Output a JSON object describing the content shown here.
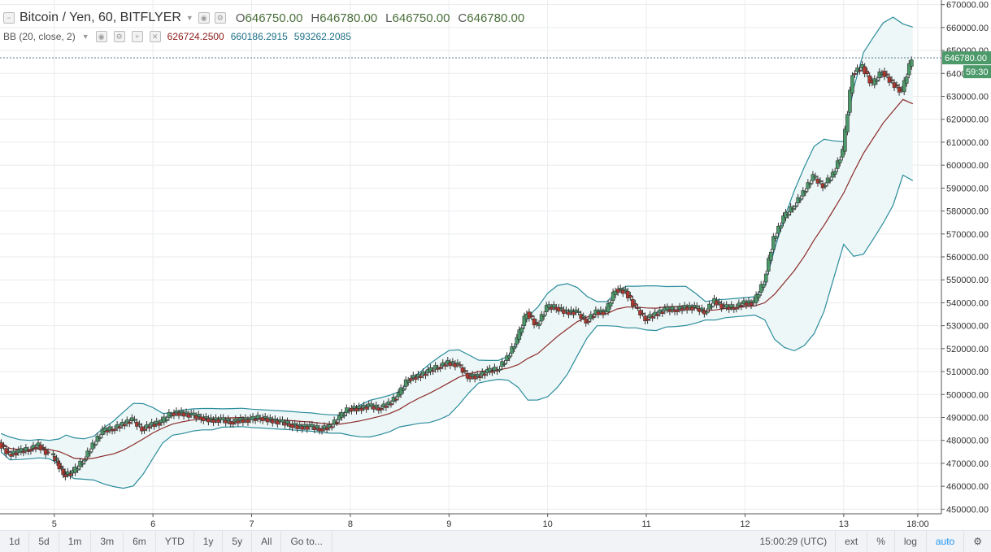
{
  "header": {
    "symbol": "Bitcoin / Yen, 60, BITFLYER",
    "open_label": "O",
    "open": "646750.00",
    "high_label": "H",
    "high": "646780.00",
    "low_label": "L",
    "low": "646750.00",
    "close_label": "C",
    "close": "646780.00"
  },
  "indicator": {
    "name": "BB (20, close, 2)",
    "basis": "626724.2500",
    "upper": "660186.2915",
    "lower": "593262.2085"
  },
  "price_badge": {
    "price": "646780.00",
    "countdown": "59:30"
  },
  "toolbar": {
    "ranges": [
      "1d",
      "5d",
      "1m",
      "3m",
      "6m",
      "YTD",
      "1y",
      "5y",
      "All"
    ],
    "goto": "Go to...",
    "time": "15:00:29 (UTC)",
    "ext": "ext",
    "percent": "%",
    "log": "log",
    "auto": "auto"
  },
  "colors": {
    "up": "#4c9a6a",
    "down": "#b5372d",
    "basis": "#8b2a2a",
    "band": "#2a8c9c",
    "band_fill": "#eef7f7",
    "grid": "#e9ebee",
    "axis_text": "#333333",
    "price_badge": "#4c9a6a"
  },
  "chart_data": {
    "type": "candlestick",
    "title": "Bitcoin / Yen, 60, BITFLYER",
    "ylim": [
      448000,
      672000
    ],
    "y_ticks": [
      450000,
      460000,
      470000,
      480000,
      490000,
      500000,
      510000,
      520000,
      530000,
      540000,
      550000,
      560000,
      570000,
      580000,
      590000,
      600000,
      610000,
      620000,
      630000,
      640000,
      650000,
      660000,
      670000
    ],
    "y_tick_labels": [
      "450000.00",
      "460000.00",
      "470000.00",
      "480000.00",
      "490000.00",
      "500000.00",
      "510000.00",
      "520000.00",
      "530000.00",
      "540000.00",
      "550000.00",
      "560000.00",
      "570000.00",
      "580000.00",
      "590000.00",
      "600000.00",
      "610000.00",
      "620000.00",
      "630000.00",
      "640000.00",
      "650000.00",
      "660000.00",
      "670000.00"
    ],
    "x_ticks": [
      {
        "label": "5",
        "day": 5
      },
      {
        "label": "6",
        "day": 6
      },
      {
        "label": "7",
        "day": 7
      },
      {
        "label": "8",
        "day": 8
      },
      {
        "label": "9",
        "day": 9
      },
      {
        "label": "10",
        "day": 10
      },
      {
        "label": "11",
        "day": 11
      },
      {
        "label": "12",
        "day": 12
      },
      {
        "label": "13",
        "day": 13
      },
      {
        "label": "18:00",
        "day": 13.75
      }
    ],
    "x_range_days": [
      4.45,
      13.99
    ],
    "series_close": [
      [
        4.46,
        479000
      ],
      [
        4.55,
        474000
      ],
      [
        4.65,
        475000
      ],
      [
        4.75,
        476000
      ],
      [
        4.85,
        478000
      ],
      [
        4.95,
        474000
      ],
      [
        5.05,
        470000
      ],
      [
        5.12,
        465000
      ],
      [
        5.2,
        466000
      ],
      [
        5.3,
        471000
      ],
      [
        5.4,
        478000
      ],
      [
        5.5,
        484000
      ],
      [
        5.6,
        485000
      ],
      [
        5.7,
        487000
      ],
      [
        5.8,
        489000
      ],
      [
        5.9,
        485000
      ],
      [
        6.0,
        487000
      ],
      [
        6.1,
        488000
      ],
      [
        6.2,
        492000
      ],
      [
        6.3,
        492000
      ],
      [
        6.4,
        491000
      ],
      [
        6.5,
        490000
      ],
      [
        6.6,
        489000
      ],
      [
        6.7,
        489000
      ],
      [
        6.8,
        488000
      ],
      [
        6.9,
        489000
      ],
      [
        7.0,
        489000
      ],
      [
        7.1,
        490000
      ],
      [
        7.2,
        489000
      ],
      [
        7.3,
        488000
      ],
      [
        7.4,
        487000
      ],
      [
        7.5,
        486000
      ],
      [
        7.6,
        486000
      ],
      [
        7.7,
        485000
      ],
      [
        7.8,
        486000
      ],
      [
        7.9,
        490000
      ],
      [
        8.0,
        494000
      ],
      [
        8.1,
        494000
      ],
      [
        8.2,
        495000
      ],
      [
        8.3,
        494000
      ],
      [
        8.4,
        496000
      ],
      [
        8.5,
        500000
      ],
      [
        8.6,
        507000
      ],
      [
        8.7,
        508000
      ],
      [
        8.8,
        510000
      ],
      [
        8.9,
        512000
      ],
      [
        9.0,
        514000
      ],
      [
        9.1,
        513000
      ],
      [
        9.2,
        508000
      ],
      [
        9.3,
        508000
      ],
      [
        9.4,
        510000
      ],
      [
        9.5,
        511000
      ],
      [
        9.6,
        516000
      ],
      [
        9.7,
        524000
      ],
      [
        9.8,
        536000
      ],
      [
        9.9,
        530000
      ],
      [
        10.0,
        538000
      ],
      [
        10.1,
        538000
      ],
      [
        10.2,
        536000
      ],
      [
        10.3,
        536000
      ],
      [
        10.4,
        532000
      ],
      [
        10.5,
        536000
      ],
      [
        10.6,
        536000
      ],
      [
        10.7,
        546000
      ],
      [
        10.8,
        545000
      ],
      [
        10.9,
        538000
      ],
      [
        11.0,
        533000
      ],
      [
        11.1,
        535000
      ],
      [
        11.2,
        537000
      ],
      [
        11.3,
        537000
      ],
      [
        11.4,
        538000
      ],
      [
        11.5,
        538000
      ],
      [
        11.6,
        536000
      ],
      [
        11.7,
        541000
      ],
      [
        11.8,
        538000
      ],
      [
        11.9,
        538000
      ],
      [
        12.0,
        540000
      ],
      [
        12.1,
        540000
      ],
      [
        12.2,
        549000
      ],
      [
        12.3,
        568000
      ],
      [
        12.4,
        577000
      ],
      [
        12.5,
        582000
      ],
      [
        12.6,
        588000
      ],
      [
        12.7,
        595000
      ],
      [
        12.8,
        591000
      ],
      [
        12.9,
        596000
      ],
      [
        13.0,
        606000
      ],
      [
        13.1,
        640000
      ],
      [
        13.2,
        643000
      ],
      [
        13.3,
        635000
      ],
      [
        13.4,
        641000
      ],
      [
        13.5,
        636000
      ],
      [
        13.6,
        632000
      ],
      [
        13.7,
        646780
      ]
    ],
    "bb_basis_last": 626724.25,
    "bb_upper_last": 660186.2915,
    "bb_lower_last": 593262.2085,
    "last_price": 646780,
    "grid": true
  }
}
